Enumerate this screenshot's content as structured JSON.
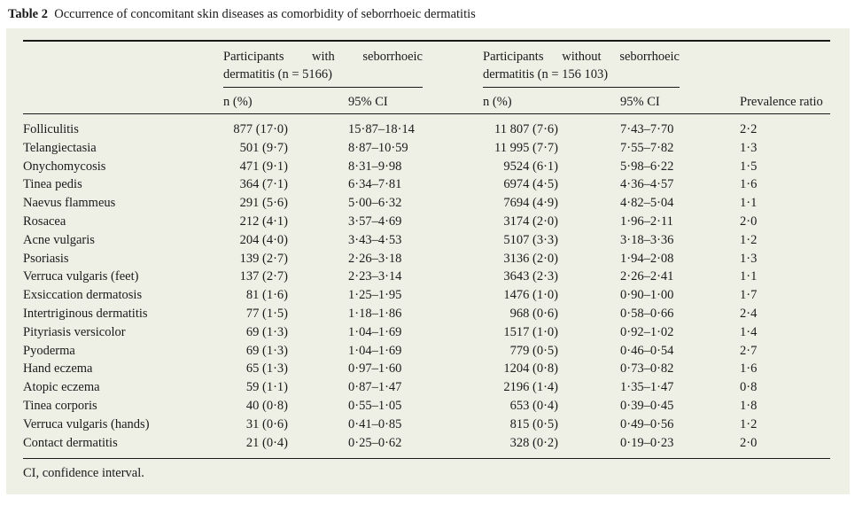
{
  "caption": {
    "label": "Table 2",
    "text": "Occurrence of concomitant skin diseases as comorbidity of seborrhoeic dermatitis"
  },
  "header": {
    "group_with_line1": "Participants with seborrhoeic",
    "group_with_line2": "dermatitis (n = 5166)",
    "group_without_line1": "Participants without seborrhoeic",
    "group_without_line2": "dermatitis (n = 156 103)",
    "col_n": "n (%)",
    "col_ci": "95% CI",
    "col_n2": "n (%)",
    "col_ci2": "95% CI",
    "col_pr": "Prevalence ratio"
  },
  "rows": [
    {
      "disease": "Folliculitis",
      "with_n": "877 (17·0)",
      "with_ci": "15·87–18·14",
      "without_n": "11 807 (7·6)",
      "without_ci": "7·43–7·70",
      "pr": "2·2"
    },
    {
      "disease": "Telangiectasia",
      "with_n": "501 (9·7)",
      "with_ci": "8·87–10·59",
      "without_n": "11 995 (7·7)",
      "without_ci": "7·55–7·82",
      "pr": "1·3"
    },
    {
      "disease": "Onychomycosis",
      "with_n": "471 (9·1)",
      "with_ci": "8·31–9·98",
      "without_n": "9524 (6·1)",
      "without_ci": "5·98–6·22",
      "pr": "1·5"
    },
    {
      "disease": "Tinea pedis",
      "with_n": "364 (7·1)",
      "with_ci": "6·34–7·81",
      "without_n": "6974 (4·5)",
      "without_ci": "4·36–4·57",
      "pr": "1·6"
    },
    {
      "disease": "Naevus flammeus",
      "with_n": "291 (5·6)",
      "with_ci": "5·00–6·32",
      "without_n": "7694 (4·9)",
      "without_ci": "4·82–5·04",
      "pr": "1·1"
    },
    {
      "disease": "Rosacea",
      "with_n": "212 (4·1)",
      "with_ci": "3·57–4·69",
      "without_n": "3174 (2·0)",
      "without_ci": "1·96–2·11",
      "pr": "2·0"
    },
    {
      "disease": "Acne vulgaris",
      "with_n": "204 (4·0)",
      "with_ci": "3·43–4·53",
      "without_n": "5107 (3·3)",
      "without_ci": "3·18–3·36",
      "pr": "1·2"
    },
    {
      "disease": "Psoriasis",
      "with_n": "139 (2·7)",
      "with_ci": "2·26–3·18",
      "without_n": "3136 (2·0)",
      "without_ci": "1·94–2·08",
      "pr": "1·3"
    },
    {
      "disease": "Verruca vulgaris (feet)",
      "with_n": "137 (2·7)",
      "with_ci": "2·23–3·14",
      "without_n": "3643 (2·3)",
      "without_ci": "2·26–2·41",
      "pr": "1·1"
    },
    {
      "disease": "Exsiccation dermatosis",
      "with_n": "81 (1·6)",
      "with_ci": "1·25–1·95",
      "without_n": "1476 (1·0)",
      "without_ci": "0·90–1·00",
      "pr": "1·7"
    },
    {
      "disease": "Intertriginous dermatitis",
      "with_n": "77 (1·5)",
      "with_ci": "1·18–1·86",
      "without_n": "968 (0·6)",
      "without_ci": "0·58–0·66",
      "pr": "2·4"
    },
    {
      "disease": "Pityriasis versicolor",
      "with_n": "69 (1·3)",
      "with_ci": "1·04–1·69",
      "without_n": "1517 (1·0)",
      "without_ci": "0·92–1·02",
      "pr": "1·4"
    },
    {
      "disease": "Pyoderma",
      "with_n": "69 (1·3)",
      "with_ci": "1·04–1·69",
      "without_n": "779 (0·5)",
      "without_ci": "0·46–0·54",
      "pr": "2·7"
    },
    {
      "disease": "Hand eczema",
      "with_n": "65 (1·3)",
      "with_ci": "0·97–1·60",
      "without_n": "1204 (0·8)",
      "without_ci": "0·73–0·82",
      "pr": "1·6"
    },
    {
      "disease": "Atopic eczema",
      "with_n": "59 (1·1)",
      "with_ci": "0·87–1·47",
      "without_n": "2196 (1·4)",
      "without_ci": "1·35–1·47",
      "pr": "0·8"
    },
    {
      "disease": "Tinea corporis",
      "with_n": "40 (0·8)",
      "with_ci": "0·55–1·05",
      "without_n": "653 (0·4)",
      "without_ci": "0·39–0·45",
      "pr": "1·8"
    },
    {
      "disease": "Verruca vulgaris (hands)",
      "with_n": "31 (0·6)",
      "with_ci": "0·41–0·85",
      "without_n": "815 (0·5)",
      "without_ci": "0·49–0·56",
      "pr": "1·2"
    },
    {
      "disease": "Contact dermatitis",
      "with_n": "21 (0·4)",
      "with_ci": "0·25–0·62",
      "without_n": "328 (0·2)",
      "without_ci": "0·19–0·23",
      "pr": "2·0"
    }
  ],
  "footnote": "CI, confidence interval."
}
